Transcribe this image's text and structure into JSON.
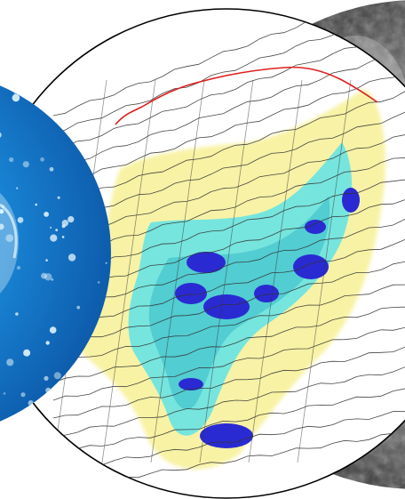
{
  "composite": {
    "panels": [
      {
        "name": "water-droplets",
        "colors": {
          "deep": "#0a4fa0",
          "mid": "#1a86d6",
          "light": "#6fd0f5",
          "highlight": "#e8f9ff"
        }
      },
      {
        "name": "volumetric-plume",
        "colors": {
          "yellow": "#f2e85a",
          "pale_yellow": "#f7f2a8",
          "cyan": "#5fe3e8",
          "teal": "#34b9c9",
          "blue": "#2a2ad2",
          "profile_line": "#e0201f",
          "survey_lines": "#333333"
        }
      },
      {
        "name": "grey-texture",
        "colors": {
          "dark": "#1b1b1b",
          "mid": "#6e6e6e",
          "light": "#b5b5b5"
        }
      }
    ],
    "frame_color": "#000000",
    "background": "#ffffff"
  }
}
